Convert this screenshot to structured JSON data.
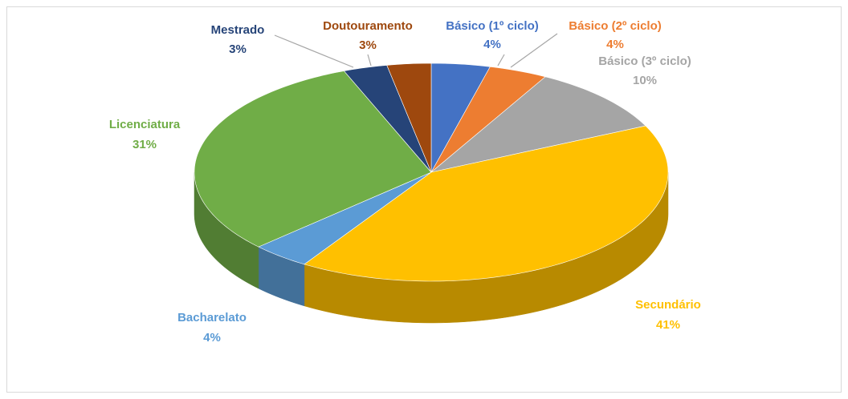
{
  "chart_data": {
    "type": "pie3d",
    "categories": [
      "Básico (1º ciclo)",
      "Básico (2º ciclo)",
      "Básico (3º ciclo)",
      "Secundário",
      "Bacharelato",
      "Licenciatura",
      "Mestrado",
      "Doutouramento"
    ],
    "values": [
      4,
      4,
      10,
      41,
      4,
      31,
      3,
      3
    ],
    "value_labels": [
      "4%",
      "4%",
      "10%",
      "41%",
      "4%",
      "31%",
      "3%",
      "3%"
    ],
    "colors": [
      "#4472c4",
      "#ed7d31",
      "#a5a5a5",
      "#ffc000",
      "#5b9bd5",
      "#70ad47",
      "#264478",
      "#9e480e"
    ]
  }
}
